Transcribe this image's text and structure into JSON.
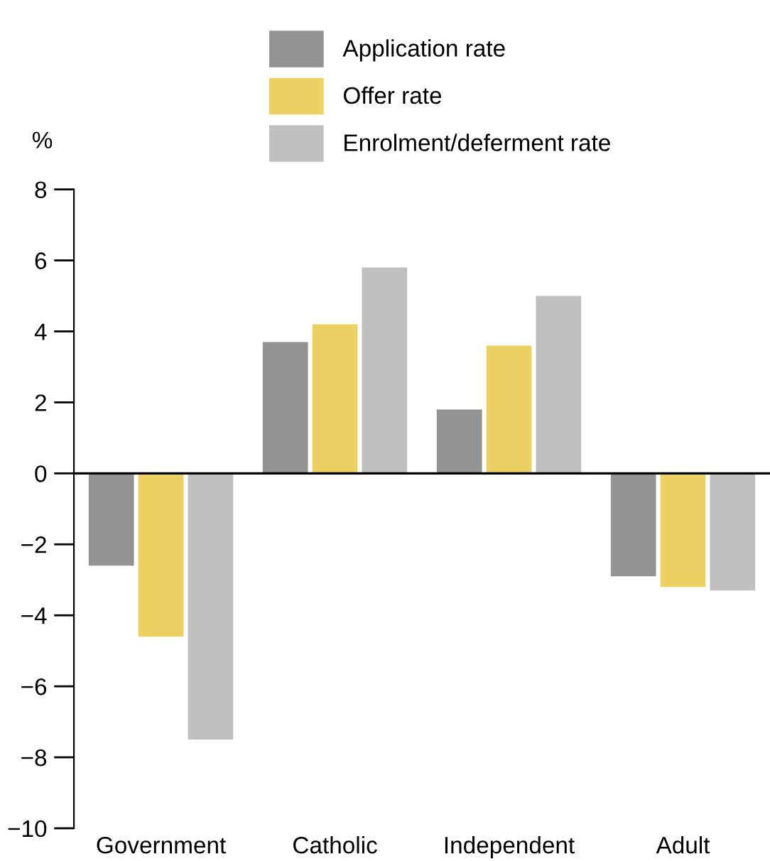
{
  "chart_data": {
    "type": "bar",
    "ylabel": "%",
    "categories": [
      "Government",
      "Catholic",
      "Independent",
      "Adult"
    ],
    "series": [
      {
        "name": "Application rate",
        "color": "#939393",
        "values": [
          -2.6,
          3.7,
          1.8,
          -2.9
        ]
      },
      {
        "name": "Offer rate",
        "color": "#edd263",
        "values": [
          -4.6,
          4.2,
          3.6,
          -3.2
        ]
      },
      {
        "name": "Enrolment/deferment rate",
        "color": "#c0c0c0",
        "values": [
          -7.5,
          5.8,
          5.0,
          -3.3
        ]
      }
    ],
    "ylim": [
      -10,
      8
    ],
    "yticks": [
      -10,
      -8,
      -6,
      -4,
      -2,
      0,
      2,
      4,
      6,
      8
    ],
    "legend": "top"
  }
}
